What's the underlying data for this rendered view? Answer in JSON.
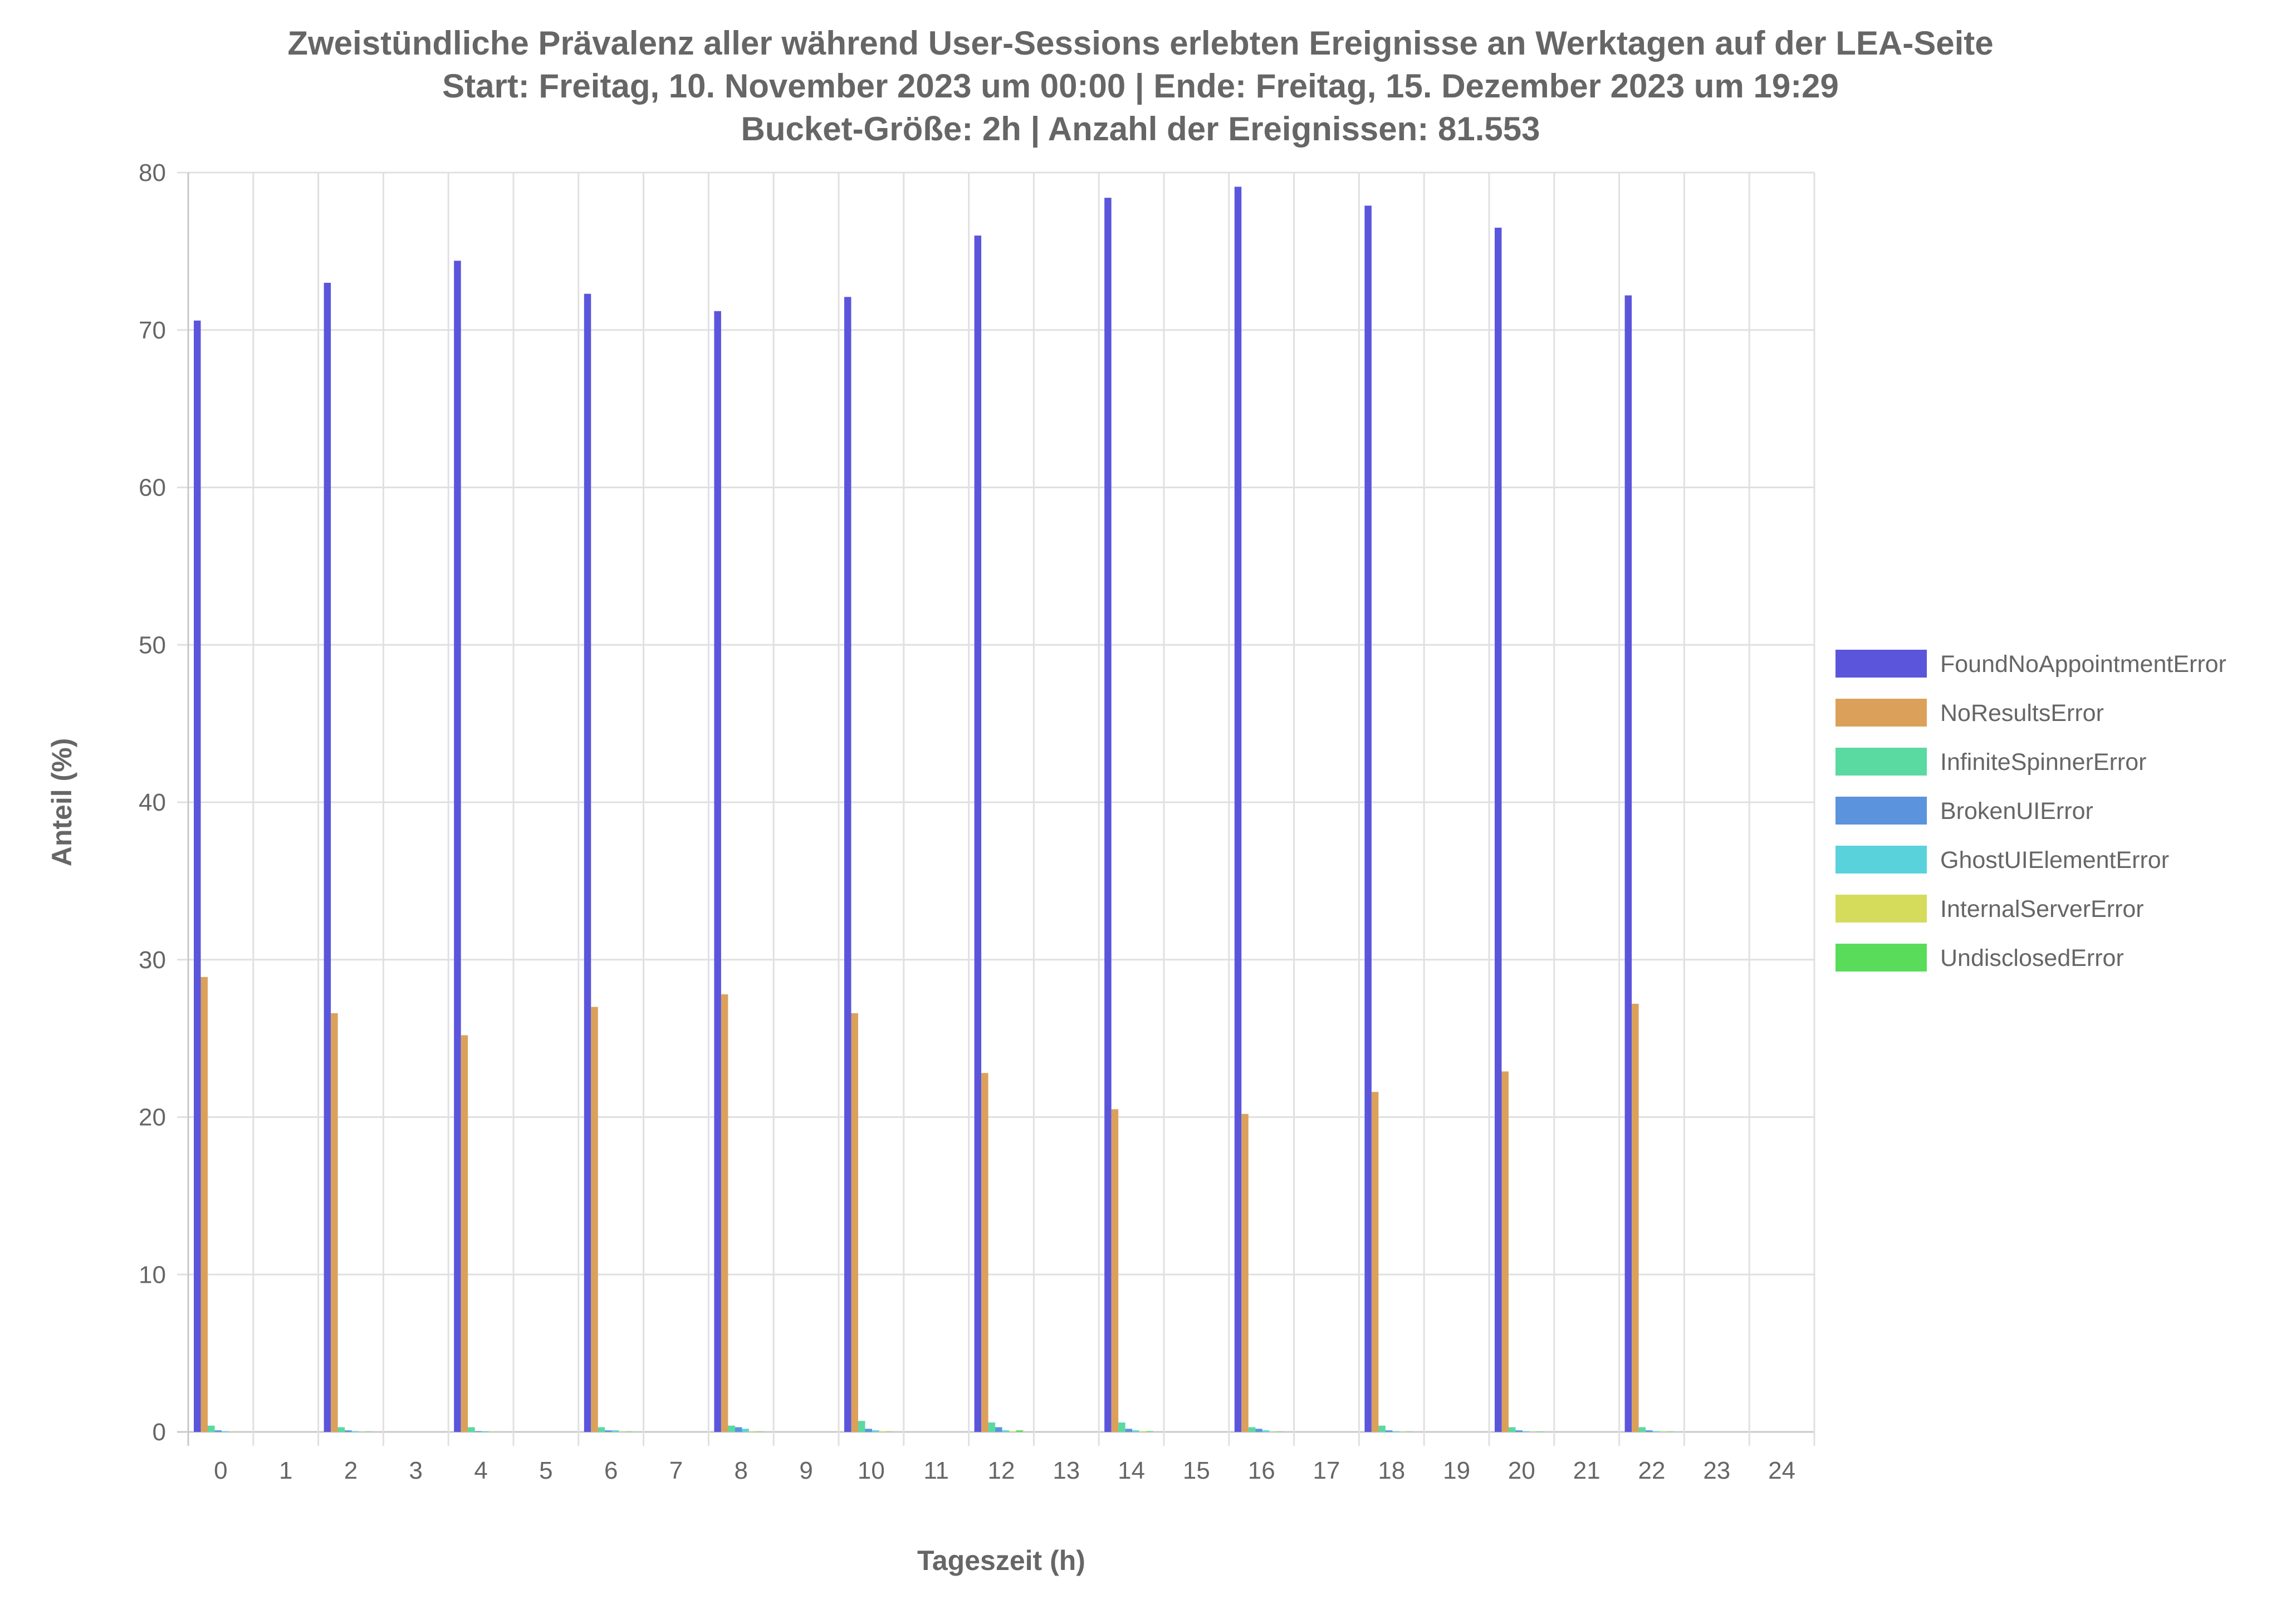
{
  "chart_data": {
    "type": "bar",
    "title": [
      "Zweistündliche Prävalenz aller während User-Sessions erlebten Ereignisse an Werktagen auf der LEA-Seite",
      "Start: Freitag, 10. November 2023 um 00:00 | Ende: Freitag, 15. Dezember 2023 um 19:29",
      "Bucket-Größe: 2h | Anzahl der Ereignissen: 81.553"
    ],
    "xlabel": "Tageszeit (h)",
    "ylabel": "Anteil (%)",
    "ylim": [
      0,
      80
    ],
    "yticks": [
      0,
      10,
      20,
      30,
      40,
      50,
      60,
      70,
      80
    ],
    "categories": [
      "0",
      "1",
      "2",
      "3",
      "4",
      "5",
      "6",
      "7",
      "8",
      "9",
      "10",
      "11",
      "12",
      "13",
      "14",
      "15",
      "16",
      "17",
      "18",
      "19",
      "20",
      "21",
      "22",
      "23",
      "24"
    ],
    "grid": true,
    "legend_position": "right",
    "series": [
      {
        "name": "FoundNoAppointmentError",
        "color": "#5b55dc",
        "values": [
          70.6,
          0,
          73.0,
          0,
          74.4,
          0,
          72.3,
          0,
          71.2,
          0,
          72.1,
          0,
          76.0,
          0,
          78.4,
          0,
          79.1,
          0,
          77.9,
          0,
          76.5,
          0,
          72.2,
          0,
          0
        ]
      },
      {
        "name": "NoResultsError",
        "color": "#dba15b",
        "values": [
          28.9,
          0,
          26.6,
          0,
          25.2,
          0,
          27.0,
          0,
          27.8,
          0,
          26.6,
          0,
          22.8,
          0,
          20.5,
          0,
          20.2,
          0,
          21.6,
          0,
          22.9,
          0,
          27.2,
          0,
          0
        ]
      },
      {
        "name": "InfiniteSpinnerError",
        "color": "#5ad9a0",
        "values": [
          0.4,
          0,
          0.3,
          0,
          0.3,
          0,
          0.3,
          0,
          0.4,
          0,
          0.7,
          0,
          0.6,
          0,
          0.6,
          0,
          0.3,
          0,
          0.4,
          0,
          0.3,
          0,
          0.3,
          0,
          0
        ]
      },
      {
        "name": "BrokenUIError",
        "color": "#5b93dc",
        "values": [
          0.1,
          0,
          0.1,
          0,
          0.05,
          0,
          0.1,
          0,
          0.3,
          0,
          0.2,
          0,
          0.3,
          0,
          0.2,
          0,
          0.2,
          0,
          0.1,
          0,
          0.1,
          0,
          0.1,
          0,
          0
        ]
      },
      {
        "name": "GhostUIElementError",
        "color": "#5ad2dc",
        "values": [
          0.05,
          0,
          0.05,
          0,
          0.05,
          0,
          0.1,
          0,
          0.2,
          0,
          0.1,
          0,
          0.1,
          0,
          0.1,
          0,
          0.1,
          0,
          0.05,
          0,
          0.05,
          0,
          0.05,
          0,
          0
        ]
      },
      {
        "name": "InternalServerError",
        "color": "#d5dc5b",
        "values": [
          0.02,
          0,
          0.02,
          0,
          0.02,
          0,
          0.02,
          0,
          0.05,
          0,
          0.05,
          0,
          0.05,
          0,
          0.05,
          0,
          0.02,
          0,
          0.02,
          0,
          0.02,
          0,
          0.02,
          0,
          0
        ]
      },
      {
        "name": "UndisclosedError",
        "color": "#5adc5b",
        "values": [
          0,
          0,
          0.02,
          0,
          0,
          0,
          0.02,
          0,
          0.02,
          0,
          0.02,
          0,
          0.1,
          0,
          0.05,
          0,
          0.02,
          0,
          0.02,
          0,
          0.02,
          0,
          0.02,
          0,
          0
        ]
      }
    ]
  }
}
